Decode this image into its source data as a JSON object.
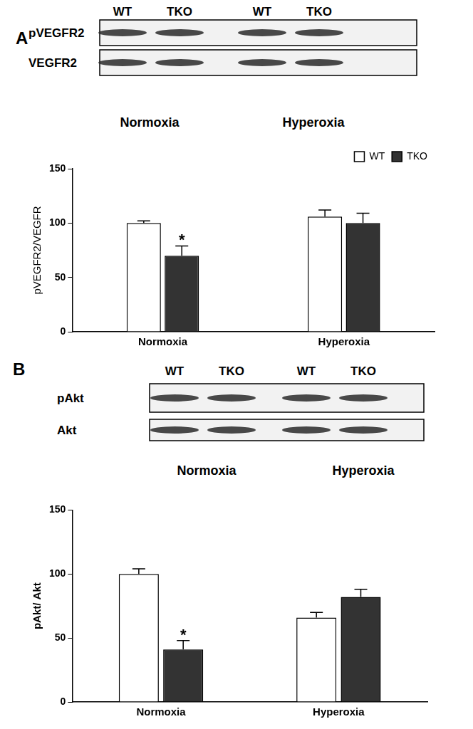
{
  "chart_data": [
    {
      "type": "bar",
      "y_label": "pVEGFR2/VEGFR",
      "categories": [
        "Normoxia",
        "Hyperoxia"
      ],
      "series": [
        {
          "name": "WT",
          "color": "#ffffff",
          "values": [
            100,
            106
          ],
          "errors": [
            2,
            6
          ]
        },
        {
          "name": "TKO",
          "color": "#333333",
          "values": [
            70,
            100
          ],
          "errors": [
            9,
            9
          ]
        }
      ],
      "ylim": [
        0,
        150
      ],
      "yticks": [
        0,
        50,
        100,
        150
      ],
      "grid": false,
      "legend": "upper right",
      "annotations": [
        {
          "text": "*",
          "category": "Normoxia",
          "series": "TKO"
        }
      ]
    },
    {
      "type": "bar",
      "y_label": "pAkt/ Akt",
      "categories": [
        "Normoxia",
        "Hyperoxia"
      ],
      "series": [
        {
          "name": "WT",
          "color": "#ffffff",
          "values": [
            100,
            66
          ],
          "errors": [
            4,
            4
          ]
        },
        {
          "name": "TKO",
          "color": "#333333",
          "values": [
            41,
            82
          ],
          "errors": [
            7,
            6
          ]
        }
      ],
      "ylim": [
        0,
        150
      ],
      "yticks": [
        0,
        50,
        100,
        150
      ],
      "grid": false,
      "annotations": [
        {
          "text": "*",
          "category": "Normoxia",
          "series": "TKO"
        }
      ]
    }
  ],
  "blots": [
    {
      "panel": "A",
      "lanes": [
        "WT",
        "TKO",
        "WT",
        "TKO"
      ],
      "rows": [
        "pVEGFR2",
        "VEGFR2"
      ],
      "conditions": [
        "Normoxia",
        "Hyperoxia"
      ]
    },
    {
      "panel": "B",
      "lanes": [
        "WT",
        "TKO",
        "WT",
        "TKO"
      ],
      "rows": [
        "pAkt",
        "Akt"
      ],
      "conditions": [
        "Normoxia",
        "Hyperoxia"
      ]
    }
  ]
}
